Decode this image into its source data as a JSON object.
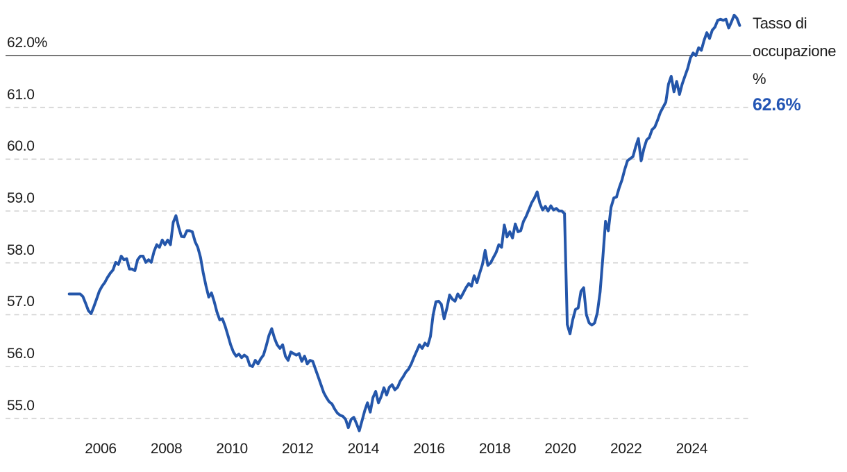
{
  "legend": {
    "label": "Tasso di occupazione %",
    "value": "62.6%"
  },
  "colors": {
    "line": "#2456aa",
    "value_text": "#2355b4",
    "grid_dashed": "#d2d2d2",
    "grid_solid": "#4a4a4a",
    "tick_text": "#1b1b1b",
    "background": "#ffffff"
  },
  "chart_data": {
    "type": "line",
    "title": "",
    "legend_position": "right",
    "grid": "horizontal-dashed",
    "ylabel": "Tasso di occupazione %",
    "xlabel": "",
    "ylim": [
      54.6,
      62.9
    ],
    "xlim": [
      2005.0,
      2025.5
    ],
    "last_value_label": "62.6%",
    "y_ticks": [
      {
        "label": "62.0%",
        "value": 62.0,
        "line": "solid"
      },
      {
        "label": "61.0",
        "value": 61.0,
        "line": "dashed"
      },
      {
        "label": "60.0",
        "value": 60.0,
        "line": "dashed"
      },
      {
        "label": "59.0",
        "value": 59.0,
        "line": "dashed"
      },
      {
        "label": "58.0",
        "value": 58.0,
        "line": "dashed"
      },
      {
        "label": "57.0",
        "value": 57.0,
        "line": "dashed"
      },
      {
        "label": "56.0",
        "value": 56.0,
        "line": "dashed"
      },
      {
        "label": "55.0",
        "value": 55.0,
        "line": "dashed"
      }
    ],
    "x_ticks": [
      {
        "label": "2006",
        "year": 2006
      },
      {
        "label": "2008",
        "year": 2008
      },
      {
        "label": "2010",
        "year": 2010
      },
      {
        "label": "2012",
        "year": 2012
      },
      {
        "label": "2014",
        "year": 2014
      },
      {
        "label": "2016",
        "year": 2016
      },
      {
        "label": "2018",
        "year": 2018
      },
      {
        "label": "2020",
        "year": 2020
      },
      {
        "label": "2022",
        "year": 2022
      },
      {
        "label": "2024",
        "year": 2024
      }
    ],
    "series": [
      {
        "name": "Tasso di occupazione %",
        "frequency": "monthly",
        "start_year": 2005,
        "start_month": 1,
        "values": [
          57.4,
          57.4,
          57.4,
          57.4,
          57.4,
          57.35,
          57.22,
          57.08,
          57.02,
          57.15,
          57.3,
          57.45,
          57.55,
          57.62,
          57.72,
          57.8,
          57.86,
          58.01,
          57.97,
          58.13,
          58.06,
          58.08,
          57.88,
          57.88,
          57.85,
          58.06,
          58.13,
          58.13,
          58.01,
          58.06,
          58.01,
          58.22,
          58.35,
          58.3,
          58.44,
          58.35,
          58.44,
          58.35,
          58.78,
          58.91,
          58.69,
          58.51,
          58.5,
          58.62,
          58.62,
          58.6,
          58.41,
          58.3,
          58.1,
          57.8,
          57.55,
          57.34,
          57.42,
          57.25,
          57.05,
          56.9,
          56.92,
          56.78,
          56.6,
          56.42,
          56.28,
          56.2,
          56.24,
          56.17,
          56.22,
          56.18,
          56.02,
          56.0,
          56.12,
          56.05,
          56.15,
          56.22,
          56.4,
          56.6,
          56.73,
          56.55,
          56.42,
          56.35,
          56.42,
          56.2,
          56.12,
          56.28,
          56.25,
          56.22,
          56.25,
          56.1,
          56.2,
          56.05,
          56.12,
          56.1,
          55.95,
          55.8,
          55.65,
          55.5,
          55.4,
          55.32,
          55.28,
          55.18,
          55.1,
          55.06,
          55.04,
          54.98,
          54.82,
          54.98,
          55.02,
          54.9,
          54.76,
          54.95,
          55.15,
          55.3,
          55.12,
          55.4,
          55.52,
          55.3,
          55.42,
          55.59,
          55.45,
          55.6,
          55.65,
          55.55,
          55.6,
          55.72,
          55.8,
          55.89,
          55.95,
          56.05,
          56.18,
          56.3,
          56.42,
          56.35,
          56.45,
          56.4,
          56.58,
          57.0,
          57.25,
          57.26,
          57.2,
          56.92,
          57.12,
          57.38,
          57.3,
          57.26,
          57.4,
          57.32,
          57.42,
          57.52,
          57.6,
          57.55,
          57.75,
          57.62,
          57.8,
          57.97,
          58.24,
          57.95,
          58.0,
          58.1,
          58.2,
          58.35,
          58.3,
          58.73,
          58.5,
          58.6,
          58.48,
          58.75,
          58.6,
          58.62,
          58.8,
          58.9,
          59.03,
          59.16,
          59.25,
          59.37,
          59.15,
          59.02,
          59.09,
          59.0,
          59.1,
          59.02,
          59.05,
          59.0,
          59.0,
          58.95,
          56.81,
          56.63,
          56.9,
          57.1,
          57.13,
          57.45,
          57.52,
          57.0,
          56.84,
          56.8,
          56.84,
          57.04,
          57.44,
          58.1,
          58.8,
          58.62,
          59.07,
          59.25,
          59.27,
          59.45,
          59.6,
          59.8,
          59.97,
          60.01,
          60.05,
          60.24,
          60.4,
          59.97,
          60.2,
          60.37,
          60.42,
          60.57,
          60.62,
          60.75,
          60.9,
          61.0,
          61.1,
          61.45,
          61.6,
          61.3,
          61.5,
          61.25,
          61.45,
          61.6,
          61.75,
          61.95,
          62.05,
          62.0,
          62.15,
          62.1,
          62.29,
          62.44,
          62.33,
          62.49,
          62.55,
          62.68,
          62.7,
          62.68,
          62.7,
          62.53,
          62.65,
          62.78,
          62.72,
          62.58
        ]
      }
    ]
  }
}
